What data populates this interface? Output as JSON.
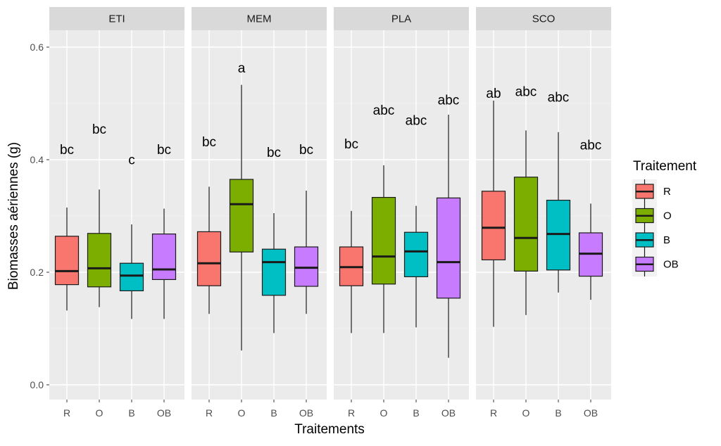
{
  "chart_data": {
    "type": "boxplot",
    "facets": [
      "ETI",
      "MEM",
      "PLA",
      "SCO"
    ],
    "categories": [
      "R",
      "O",
      "B",
      "OB"
    ],
    "xlabel": "Traitements",
    "ylabel": "Biomasses aériennes (g)",
    "ylim": [
      -0.01,
      0.65
    ],
    "yticks": [
      0.0,
      0.2,
      0.4,
      0.6
    ],
    "ytick_labels": [
      "0.0",
      "0.2",
      "0.4",
      "0.6"
    ],
    "legend": {
      "title": "Traitement",
      "placement": "right",
      "items": [
        {
          "label": "R",
          "color": "#F8766D"
        },
        {
          "label": "O",
          "color": "#7CAE00"
        },
        {
          "label": "B",
          "color": "#00BFC4"
        },
        {
          "label": "OB",
          "color": "#C77CFF"
        }
      ]
    },
    "panels": [
      {
        "facet": "ETI",
        "boxes": [
          {
            "group": "R",
            "min": 0.132,
            "q1": 0.178,
            "median": 0.202,
            "q3": 0.264,
            "max": 0.315,
            "label": "bc",
            "label_y": 0.41
          },
          {
            "group": "O",
            "min": 0.138,
            "q1": 0.174,
            "median": 0.207,
            "q3": 0.269,
            "max": 0.347,
            "label": "bc",
            "label_y": 0.446
          },
          {
            "group": "B",
            "min": 0.117,
            "q1": 0.167,
            "median": 0.194,
            "q3": 0.216,
            "max": 0.285,
            "label": "c",
            "label_y": 0.392
          },
          {
            "group": "OB",
            "min": 0.117,
            "q1": 0.187,
            "median": 0.205,
            "q3": 0.268,
            "max": 0.313,
            "label": "bc",
            "label_y": 0.41
          }
        ]
      },
      {
        "facet": "MEM",
        "boxes": [
          {
            "group": "R",
            "min": 0.126,
            "q1": 0.176,
            "median": 0.216,
            "q3": 0.272,
            "max": 0.352,
            "label": "bc",
            "label_y": 0.424
          },
          {
            "group": "O",
            "min": 0.061,
            "q1": 0.236,
            "median": 0.321,
            "q3": 0.365,
            "max": 0.533,
            "label": "a",
            "label_y": 0.555
          },
          {
            "group": "B",
            "min": 0.092,
            "q1": 0.159,
            "median": 0.218,
            "q3": 0.241,
            "max": 0.305,
            "label": "bc",
            "label_y": 0.405
          },
          {
            "group": "OB",
            "min": 0.126,
            "q1": 0.175,
            "median": 0.208,
            "q3": 0.245,
            "max": 0.345,
            "label": "bc",
            "label_y": 0.41
          }
        ]
      },
      {
        "facet": "PLA",
        "boxes": [
          {
            "group": "R",
            "min": 0.092,
            "q1": 0.176,
            "median": 0.209,
            "q3": 0.245,
            "max": 0.309,
            "label": "bc",
            "label_y": 0.42
          },
          {
            "group": "O",
            "min": 0.092,
            "q1": 0.179,
            "median": 0.228,
            "q3": 0.333,
            "max": 0.39,
            "label": "abc",
            "label_y": 0.48
          },
          {
            "group": "B",
            "min": 0.102,
            "q1": 0.192,
            "median": 0.237,
            "q3": 0.271,
            "max": 0.318,
            "label": "abc",
            "label_y": 0.462
          },
          {
            "group": "OB",
            "min": 0.048,
            "q1": 0.154,
            "median": 0.218,
            "q3": 0.332,
            "max": 0.48,
            "label": "abc",
            "label_y": 0.498
          }
        ]
      },
      {
        "facet": "SCO",
        "boxes": [
          {
            "group": "R",
            "min": 0.103,
            "q1": 0.222,
            "median": 0.279,
            "q3": 0.344,
            "max": 0.505,
            "label": "ab",
            "label_y": 0.51
          },
          {
            "group": "O",
            "min": 0.124,
            "q1": 0.202,
            "median": 0.261,
            "q3": 0.369,
            "max": 0.452,
            "label": "abc",
            "label_y": 0.513
          },
          {
            "group": "B",
            "min": 0.164,
            "q1": 0.204,
            "median": 0.268,
            "q3": 0.328,
            "max": 0.449,
            "label": "abc",
            "label_y": 0.503
          },
          {
            "group": "OB",
            "min": 0.151,
            "q1": 0.193,
            "median": 0.233,
            "q3": 0.27,
            "max": 0.322,
            "label": "abc",
            "label_y": 0.418
          }
        ]
      }
    ]
  }
}
